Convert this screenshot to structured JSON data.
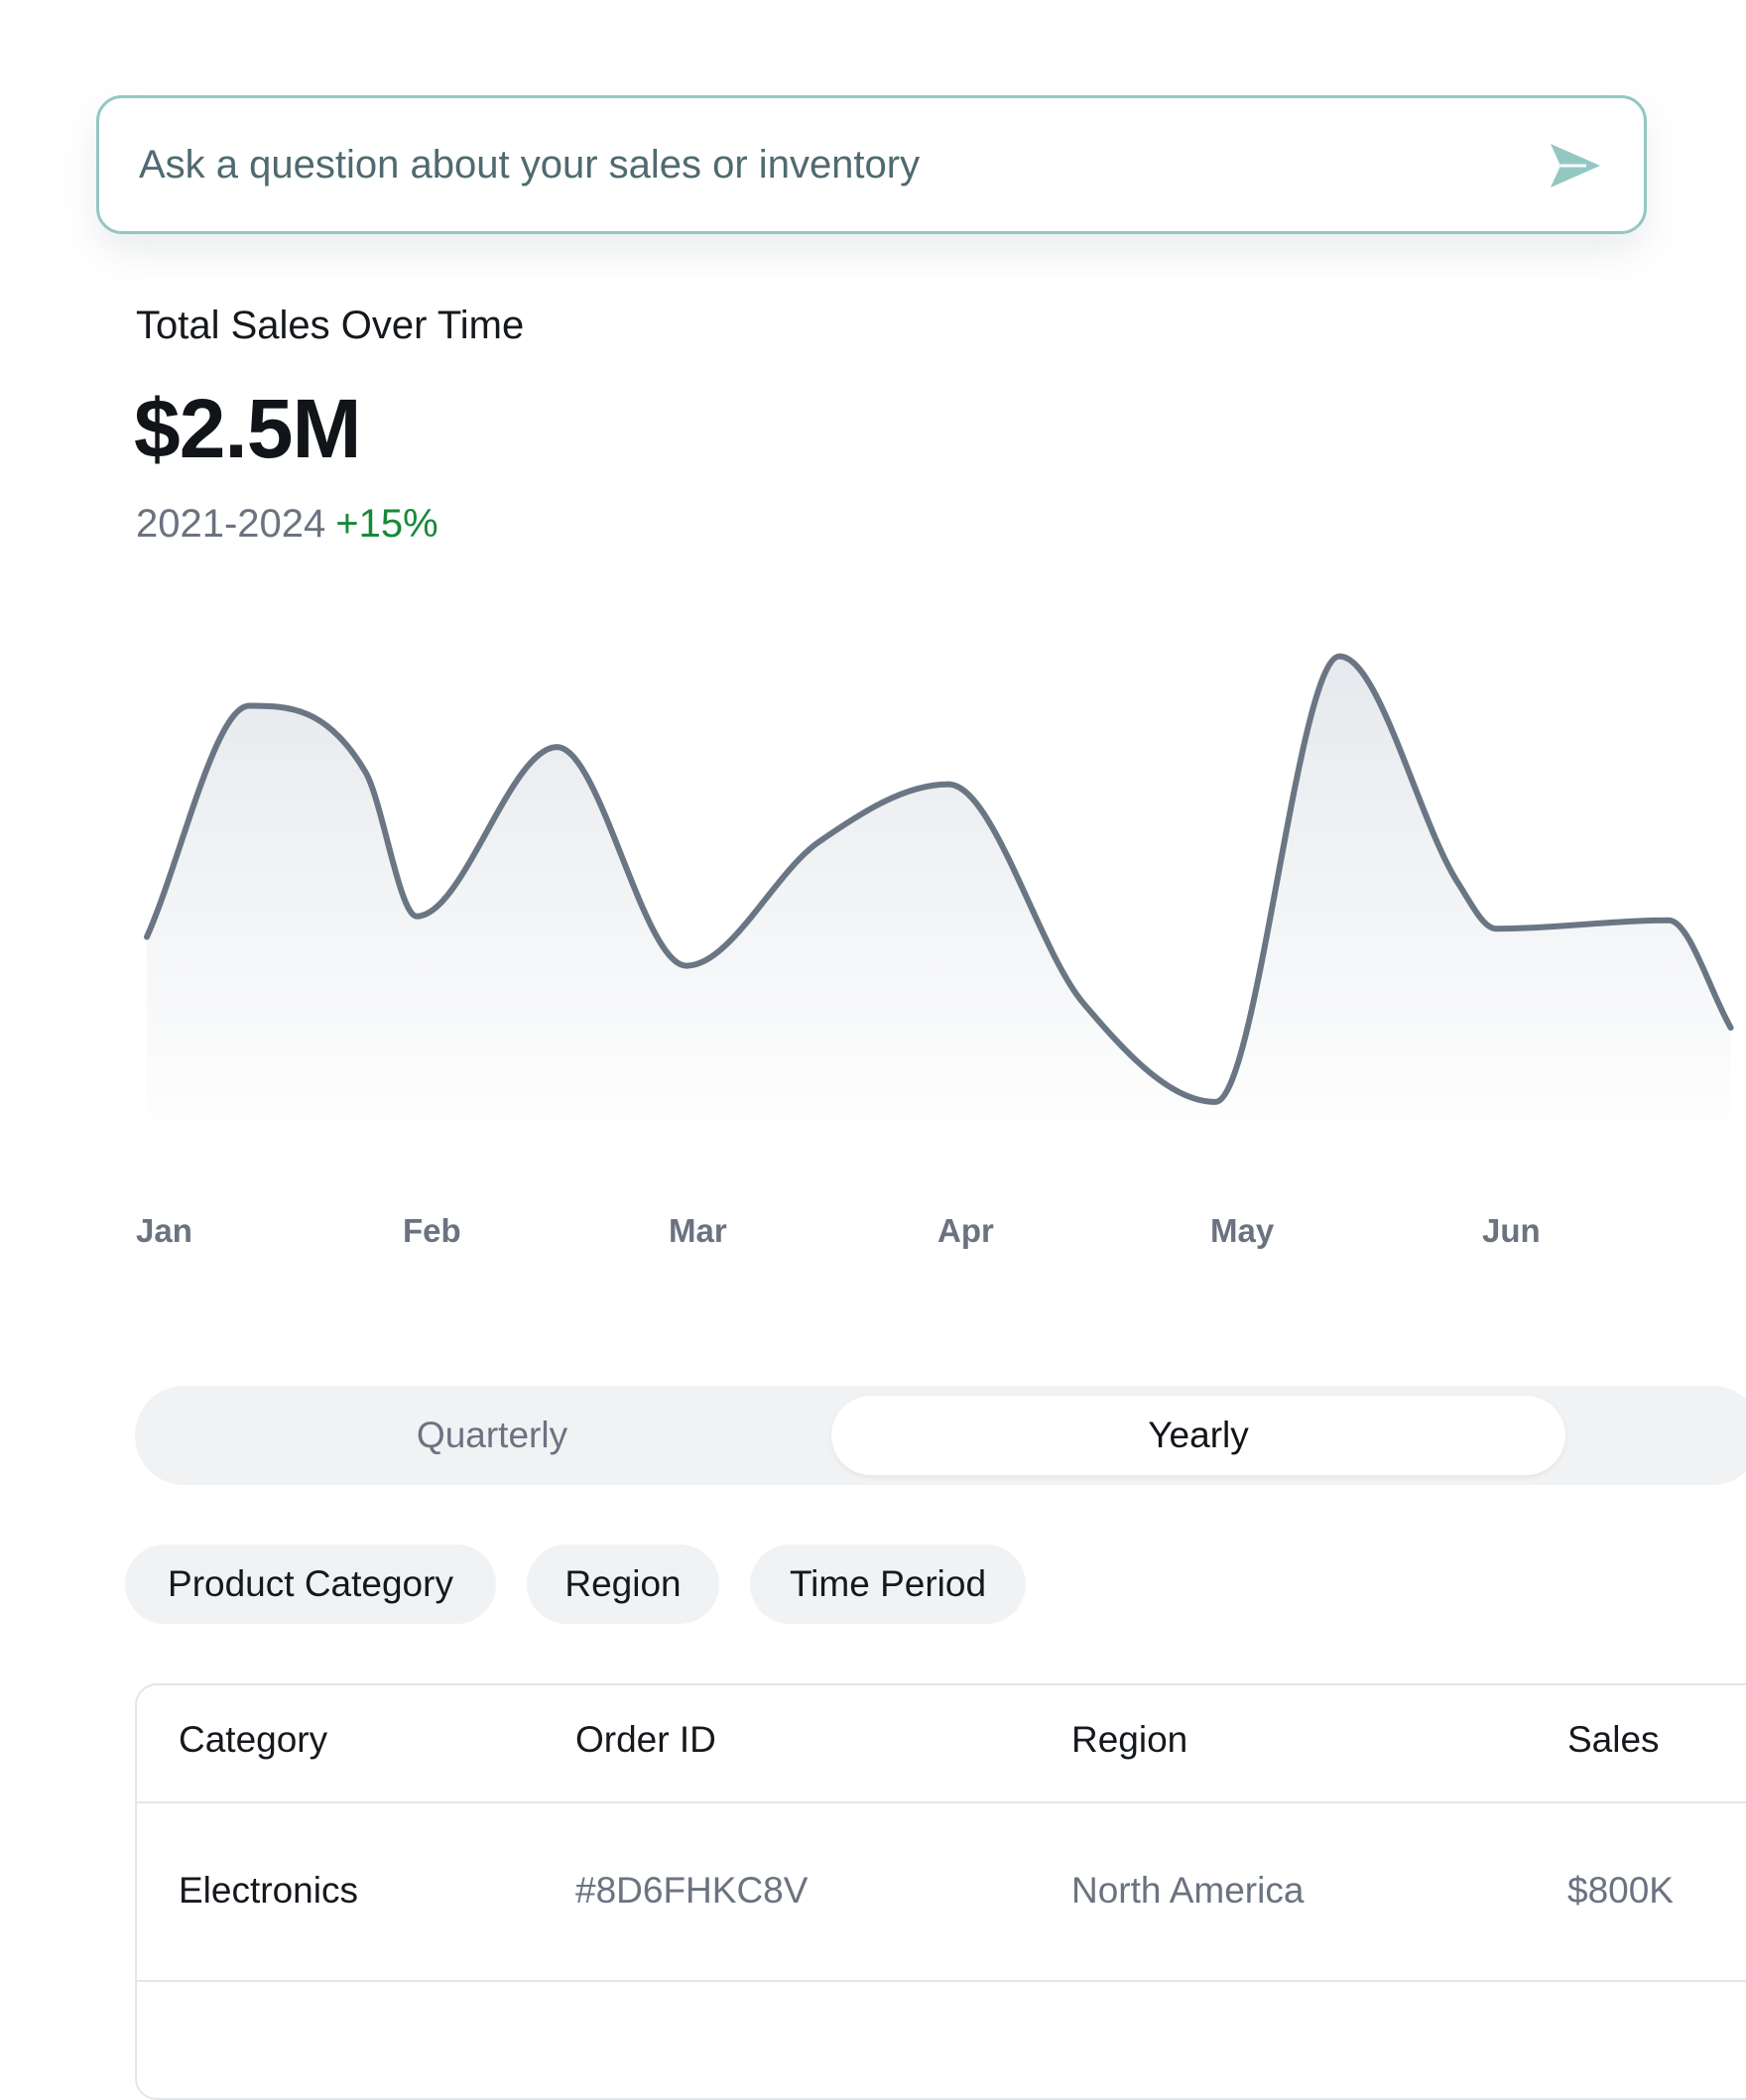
{
  "search": {
    "placeholder": "Ask a question about your sales or inventory",
    "send_icon": "send-arrow-icon"
  },
  "summary": {
    "title": "Total Sales Over Time",
    "value": "$2.5M",
    "period": "2021-2024",
    "growth": "+15%"
  },
  "chart_data": {
    "type": "area",
    "categories": [
      "Jan",
      "Feb",
      "Mar",
      "Apr",
      "May",
      "Jun"
    ],
    "x": [
      0.0,
      0.38,
      0.81,
      1.0,
      1.52,
      2.0,
      2.49,
      2.97,
      3.47,
      3.96,
      4.42,
      4.86,
      5.0,
      5.64,
      5.87
    ],
    "values": [
      22,
      78,
      62,
      27,
      68,
      15,
      45,
      59,
      6,
      -18,
      90,
      35,
      24,
      26,
      0
    ],
    "ylim": [
      -25,
      100
    ],
    "grid": false,
    "legend": "none"
  },
  "toggle": {
    "options": [
      "Quarterly",
      "Yearly"
    ],
    "active": "Yearly"
  },
  "filters": [
    "Product Category",
    "Region",
    "Time Period"
  ],
  "table": {
    "columns": [
      "Category",
      "Order ID",
      "Region",
      "Sales"
    ],
    "rows": [
      [
        "Electronics",
        "#8D6FHKC8V",
        "North America",
        "$800K"
      ]
    ]
  },
  "colors": {
    "accent": "#93c7c2",
    "line": "#6b7684",
    "growth": "#16893a",
    "muted_text": "#6b7280"
  }
}
